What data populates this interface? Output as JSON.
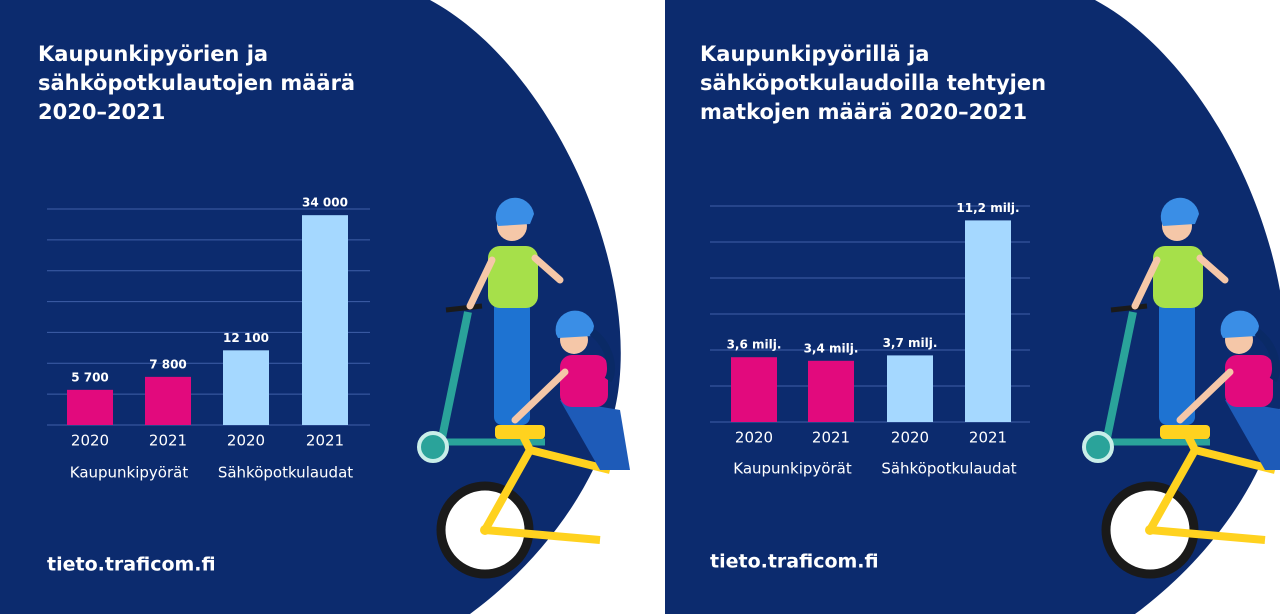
{
  "chart_data": [
    {
      "type": "bar",
      "title": "Kaupunkipyörien ja sähköpotkulautojen määrä 2020–2021",
      "categories": [
        "2020",
        "2021",
        "2020",
        "2021"
      ],
      "series": [
        {
          "name": "Kaupunkipyörät",
          "color": "#e20a7d",
          "values": [
            5700,
            7800,
            null,
            null
          ],
          "value_labels": [
            "5 700",
            "7 800",
            null,
            null
          ]
        },
        {
          "name": "Sähköpotkulaudat",
          "color": "#a5d8ff",
          "values": [
            null,
            null,
            12100,
            34000
          ],
          "value_labels": [
            null,
            null,
            "12 100",
            "34 000"
          ]
        }
      ],
      "ylim": [
        0,
        35000
      ],
      "yticks": [
        0,
        5000,
        10000,
        15000,
        20000,
        25000,
        30000,
        35000
      ],
      "grid": true,
      "source": "tieto.traficom.fi"
    },
    {
      "type": "bar",
      "title": "Kaupunkipyörillä ja sähköpotkulaudoilla tehtyjen matkojen määrä 2020–2021",
      "categories": [
        "2020",
        "2021",
        "2020",
        "2021"
      ],
      "series": [
        {
          "name": "Kaupunkipyörät",
          "color": "#e20a7d",
          "values": [
            3.6,
            3.4,
            null,
            null
          ],
          "value_labels": [
            "3,6 milj.",
            "3,4 milj.",
            null,
            null
          ]
        },
        {
          "name": "Sähköpotkulaudat",
          "color": "#a5d8ff",
          "values": [
            null,
            null,
            3.7,
            11.2
          ],
          "value_labels": [
            null,
            null,
            "3,7 milj.",
            "11,2 milj."
          ]
        }
      ],
      "ylim": [
        0,
        12
      ],
      "yticks": [
        0,
        2,
        4,
        6,
        8,
        10,
        12
      ],
      "grid": true,
      "source": "tieto.traficom.fi"
    }
  ]
}
